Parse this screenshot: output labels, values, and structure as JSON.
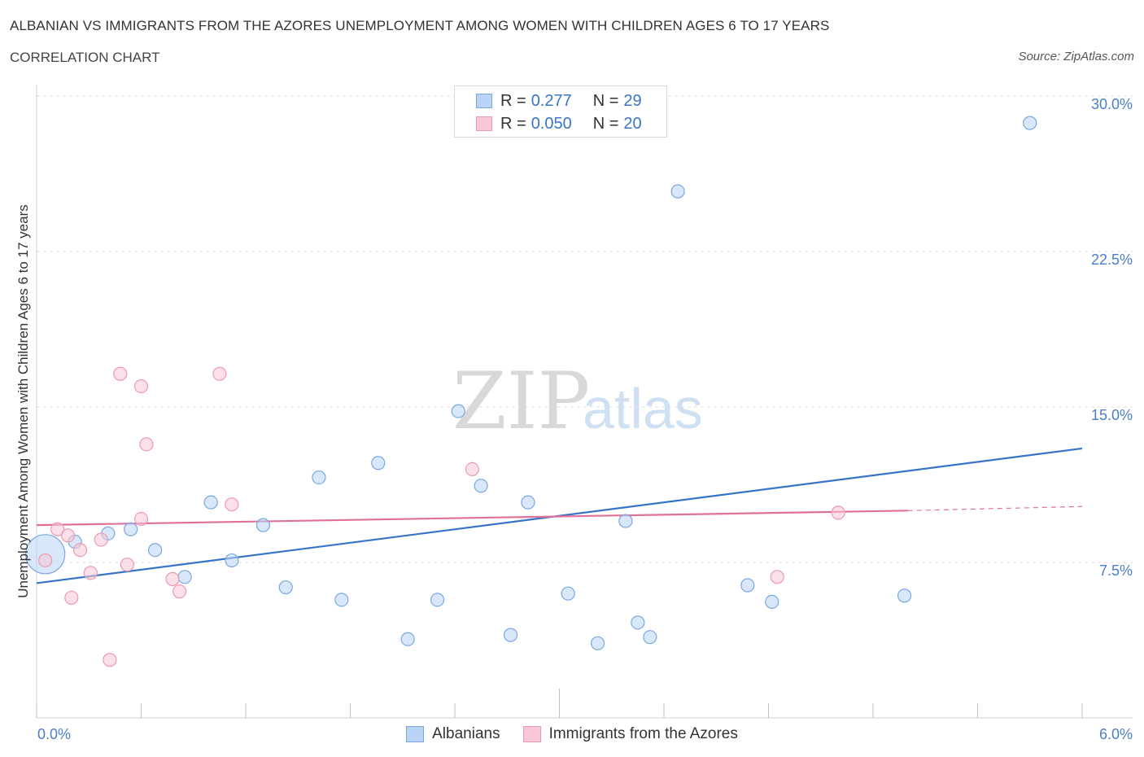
{
  "header": {
    "title": "ALBANIAN VS IMMIGRANTS FROM THE AZORES UNEMPLOYMENT AMONG WOMEN WITH CHILDREN AGES 6 TO 17 YEARS",
    "subtitle": "CORRELATION CHART",
    "source": "Source: ZipAtlas.com"
  },
  "legend": {
    "r_label": "R =",
    "n_label": "N =",
    "albanians": {
      "r": "0.277",
      "n": "29"
    },
    "azores": {
      "r": "0.050",
      "n": "20"
    }
  },
  "watermark": {
    "zip": "ZIP",
    "atlas": "atlas"
  },
  "colors": {
    "albanians_fill": "#b9d3f5",
    "albanians_stroke": "#7aa7df",
    "albanians_line": "#3674c8",
    "azores_fill": "#f8c6d5",
    "azores_stroke": "#ea9ab3",
    "azores_line": "#e0709a"
  },
  "chart_data": {
    "type": "scatter",
    "title": "ALBANIAN VS IMMIGRANTS FROM THE AZORES UNEMPLOYMENT AMONG WOMEN WITH CHILDREN AGES 6 TO 17 YEARS",
    "xlabel": "",
    "ylabel": "Unemployment Among Women with Children Ages 6 to 17 years",
    "xlim": [
      0,
      6
    ],
    "ylim": [
      0,
      30
    ],
    "x_tick_labels": [
      "0.0%",
      "6.0%"
    ],
    "y_ticks": [
      7.5,
      15.0,
      22.5,
      30.0
    ],
    "y_tick_labels": [
      "7.5%",
      "15.0%",
      "22.5%",
      "30.0%"
    ],
    "grid": true,
    "legend_position": "bottom",
    "series": [
      {
        "name": "Albanians",
        "points": [
          [
            0.05,
            7.9,
            3.0
          ],
          [
            0.22,
            8.5,
            1
          ],
          [
            0.41,
            8.9,
            1
          ],
          [
            0.54,
            9.1,
            1
          ],
          [
            0.68,
            8.1,
            1
          ],
          [
            0.85,
            6.8,
            1
          ],
          [
            1.0,
            10.4,
            1
          ],
          [
            1.12,
            7.6,
            1
          ],
          [
            1.3,
            9.3,
            1
          ],
          [
            1.43,
            6.3,
            1
          ],
          [
            1.62,
            11.6,
            1
          ],
          [
            1.75,
            5.7,
            1
          ],
          [
            1.96,
            12.3,
            1
          ],
          [
            2.13,
            3.8,
            1
          ],
          [
            2.3,
            5.7,
            1
          ],
          [
            2.42,
            14.8,
            1
          ],
          [
            2.55,
            11.2,
            1
          ],
          [
            2.72,
            4.0,
            1
          ],
          [
            2.82,
            10.4,
            1
          ],
          [
            3.05,
            6.0,
            1
          ],
          [
            3.22,
            3.6,
            1
          ],
          [
            3.38,
            9.5,
            1
          ],
          [
            3.45,
            4.6,
            1
          ],
          [
            3.52,
            3.9,
            1
          ],
          [
            3.68,
            25.4,
            1
          ],
          [
            4.08,
            6.4,
            1
          ],
          [
            4.22,
            5.6,
            1
          ],
          [
            4.98,
            5.9,
            1
          ],
          [
            5.7,
            28.7,
            1
          ]
        ],
        "trend": [
          [
            0.0,
            6.5
          ],
          [
            6.0,
            13.0
          ]
        ]
      },
      {
        "name": "Immigrants from the Azores",
        "points": [
          [
            0.05,
            7.6,
            1
          ],
          [
            0.12,
            9.1,
            1
          ],
          [
            0.18,
            8.8,
            1
          ],
          [
            0.2,
            5.8,
            1
          ],
          [
            0.25,
            8.1,
            1
          ],
          [
            0.31,
            7.0,
            1
          ],
          [
            0.37,
            8.6,
            1
          ],
          [
            0.42,
            2.8,
            1
          ],
          [
            0.48,
            16.6,
            1
          ],
          [
            0.52,
            7.4,
            1
          ],
          [
            0.6,
            16.0,
            1
          ],
          [
            0.6,
            9.6,
            1
          ],
          [
            0.63,
            13.2,
            1
          ],
          [
            0.78,
            6.7,
            1
          ],
          [
            0.82,
            6.1,
            1
          ],
          [
            1.05,
            16.6,
            1
          ],
          [
            1.12,
            10.3,
            1
          ],
          [
            2.5,
            12.0,
            1
          ],
          [
            4.25,
            6.8,
            1
          ],
          [
            4.6,
            9.9,
            1
          ]
        ],
        "trend": [
          [
            0.0,
            9.3
          ],
          [
            5.0,
            10.0
          ]
        ],
        "trend_dashed": [
          [
            5.0,
            10.0
          ],
          [
            6.0,
            10.2
          ]
        ]
      }
    ]
  }
}
